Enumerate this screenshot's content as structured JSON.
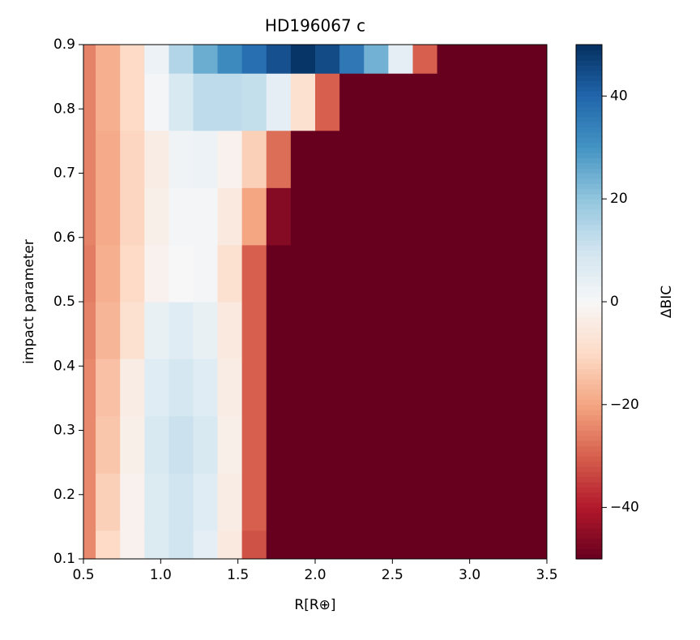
{
  "chart_data": {
    "type": "heatmap",
    "title": "HD196067 c",
    "x_label": "R[R⊕]",
    "y_label": "impact parameter",
    "colorbar_label": "ΔBIC",
    "colormap": "RdBu",
    "x": [
      0.5,
      0.658,
      0.816,
      0.974,
      1.132,
      1.289,
      1.447,
      1.605,
      1.763,
      1.921,
      2.079,
      2.237,
      2.395,
      2.553,
      2.711,
      2.868,
      3.026,
      3.184,
      3.342,
      3.5
    ],
    "y": [
      0.1,
      0.189,
      0.278,
      0.367,
      0.456,
      0.544,
      0.633,
      0.722,
      0.811,
      0.9
    ],
    "z": [
      [
        -24,
        -10,
        -2,
        7,
        10,
        5,
        -5,
        -32,
        -50,
        -50,
        -50,
        -50,
        -50,
        -50,
        -50,
        -50,
        -50,
        -50,
        -50,
        -50
      ],
      [
        -24,
        -12,
        -2,
        7,
        10,
        6,
        -4,
        -30,
        -50,
        -50,
        -50,
        -50,
        -50,
        -50,
        -50,
        -50,
        -50,
        -50,
        -50,
        -50
      ],
      [
        -24,
        -14,
        -3,
        8,
        11,
        8,
        -3,
        -30,
        -50,
        -50,
        -50,
        -50,
        -50,
        -50,
        -50,
        -50,
        -50,
        -50,
        -50,
        -50
      ],
      [
        -24,
        -15,
        -4,
        6,
        9,
        6,
        -4,
        -30,
        -50,
        -50,
        -50,
        -50,
        -50,
        -50,
        -50,
        -50,
        -50,
        -50,
        -50,
        -50
      ],
      [
        -25,
        -17,
        -8,
        4,
        6,
        4,
        -5,
        -30,
        -50,
        -50,
        -50,
        -50,
        -50,
        -50,
        -50,
        -50,
        -50,
        -50,
        -50,
        -50
      ],
      [
        -26,
        -18,
        -10,
        -2,
        0,
        1,
        -8,
        -30,
        -50,
        -50,
        -50,
        -50,
        -50,
        -50,
        -50,
        -50,
        -50,
        -50,
        -50,
        -50
      ],
      [
        -25,
        -19,
        -11,
        -3,
        1,
        1,
        -5,
        -20,
        -46,
        -50,
        -50,
        -50,
        -50,
        -50,
        -50,
        -50,
        -50,
        -50,
        -50,
        -50
      ],
      [
        -25,
        -19,
        -11,
        -4,
        2,
        3,
        -2,
        -12,
        -28,
        -50,
        -50,
        -50,
        -50,
        -50,
        -50,
        -50,
        -50,
        -50,
        -50,
        -50
      ],
      [
        -25,
        -18,
        -10,
        1,
        8,
        13,
        13,
        12,
        5,
        -8,
        -30,
        -50,
        -50,
        -50,
        -50,
        -50,
        -50,
        -50,
        -50,
        -50
      ],
      [
        -25,
        -18,
        -10,
        3,
        15,
        25,
        32,
        38,
        44,
        49,
        45,
        36,
        24,
        5,
        -30,
        -50,
        -50,
        -50,
        -50,
        -50
      ]
    ],
    "xlim": [
      0.5,
      3.5
    ],
    "xticks": [
      {
        "value": 0.5,
        "label": "0.5"
      },
      {
        "value": 1,
        "label": "1.0"
      },
      {
        "value": 1.5,
        "label": "1.5"
      },
      {
        "value": 2,
        "label": "2.0"
      },
      {
        "value": 2.5,
        "label": "2.5"
      },
      {
        "value": 3,
        "label": "3.0"
      },
      {
        "value": 3.5,
        "label": "3.5"
      }
    ],
    "ylim": [
      0.1,
      0.9
    ],
    "yticks": [
      0.1,
      0.2,
      0.3,
      0.4,
      0.5,
      0.6,
      0.7,
      0.8,
      0.9
    ],
    "clim": [
      -50,
      50
    ],
    "cticks": [
      {
        "value": -40,
        "label": "−40"
      },
      {
        "value": -20,
        "label": "−20"
      },
      0,
      20,
      40
    ]
  }
}
